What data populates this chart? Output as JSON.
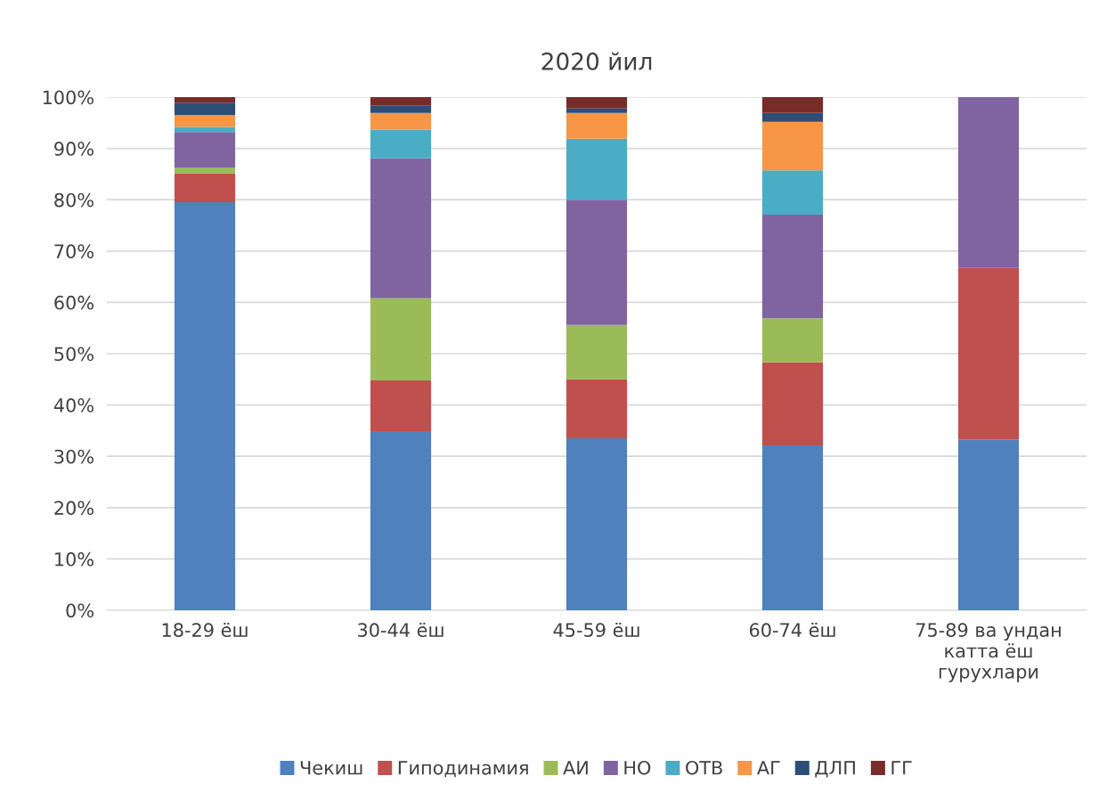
{
  "chart_data": {
    "type": "bar",
    "title": "2020 йил",
    "stacked": true,
    "categories": [
      "18-29 ёш",
      "30-44 ёш",
      "45-59 ёш",
      "60-74 ёш",
      "75-89 ва ундан\nкатта ёш\nгурухлари"
    ],
    "series": [
      {
        "name": "Чекиш",
        "color": "#4f81bd",
        "values": [
          79.5,
          34.9,
          33.5,
          32.1,
          33.3
        ]
      },
      {
        "name": "Гиподинамия",
        "color": "#c0504d",
        "values": [
          5.6,
          9.9,
          11.5,
          16.2,
          33.4
        ]
      },
      {
        "name": "АИ",
        "color": "#9bbb59",
        "values": [
          1.2,
          16.0,
          10.6,
          8.6,
          0
        ]
      },
      {
        "name": "НО",
        "color": "#8064a2",
        "values": [
          6.9,
          27.3,
          24.4,
          20.2,
          33.3
        ]
      },
      {
        "name": "ОТВ",
        "color": "#4bacc6",
        "values": [
          1.0,
          5.5,
          11.9,
          8.6,
          0
        ]
      },
      {
        "name": "АГ",
        "color": "#f79646",
        "values": [
          2.3,
          3.3,
          5.0,
          9.5,
          0
        ]
      },
      {
        "name": "ДЛП",
        "color": "#2c4d75",
        "values": [
          2.4,
          1.5,
          0.9,
          1.7,
          0
        ]
      },
      {
        "name": "ГГ",
        "color": "#772c2a",
        "values": [
          1.1,
          1.6,
          2.2,
          3.1,
          0
        ]
      }
    ],
    "ylim": [
      0,
      100
    ],
    "yticks": [
      {
        "value": 0,
        "label": "0%"
      },
      {
        "value": 10,
        "label": "10%"
      },
      {
        "value": 20,
        "label": "20%"
      },
      {
        "value": 30,
        "label": "30%"
      },
      {
        "value": 40,
        "label": "40%"
      },
      {
        "value": 50,
        "label": "50%"
      },
      {
        "value": 60,
        "label": "60%"
      },
      {
        "value": 70,
        "label": "70%"
      },
      {
        "value": 80,
        "label": "80%"
      },
      {
        "value": 90,
        "label": "90%"
      },
      {
        "value": 100,
        "label": "100%"
      }
    ],
    "grid": "y",
    "legend": "bottom"
  }
}
